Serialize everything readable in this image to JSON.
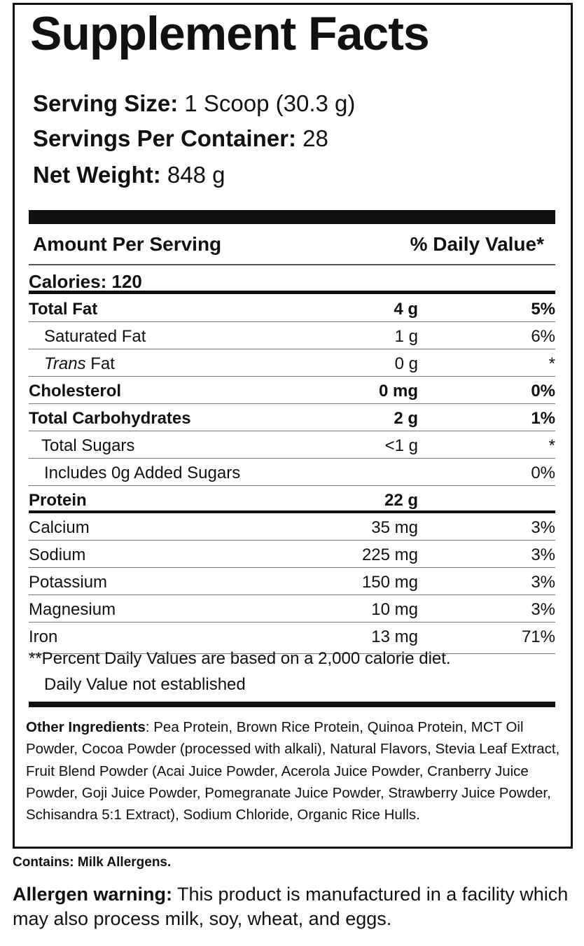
{
  "title": "Supplement Facts",
  "serving": {
    "size_label": "Serving Size:",
    "size_value": " 1 Scoop (30.3 g)",
    "per_container_label": "Servings Per Container:",
    "per_container_value": " 28",
    "net_weight_label": "Net Weight:",
    "net_weight_value": " 848 g"
  },
  "header": {
    "amount": "Amount Per Serving",
    "dv": "% Daily Value*"
  },
  "calories": "Calories: 120",
  "rows": [
    {
      "name": "Total Fat",
      "amount": "4 g",
      "dv": "5%"
    },
    {
      "name": "Saturated Fat",
      "amount": "1 g",
      "dv": "6%"
    },
    {
      "name_italic": "Trans",
      "name": " Fat",
      "amount": "0 g",
      "dv": "*"
    },
    {
      "name": "Cholesterol",
      "amount": "0 mg",
      "dv": "0%"
    },
    {
      "name": "Total Carbohydrates",
      "amount": "2 g",
      "dv": "1%"
    },
    {
      "name": "Total Sugars",
      "amount": "<1 g",
      "dv": "*"
    },
    {
      "name": "Includes 0g Added Sugars",
      "amount": "",
      "dv": "0%"
    },
    {
      "name": "Protein",
      "amount": "22 g",
      "dv": ""
    },
    {
      "name": "Calcium",
      "amount": "35 mg",
      "dv": "3%"
    },
    {
      "name": "Sodium",
      "amount": "225 mg",
      "dv": "3%"
    },
    {
      "name": "Potassium",
      "amount": "150 mg",
      "dv": "3%"
    },
    {
      "name": "Magnesium",
      "amount": "10 mg",
      "dv": "3%"
    },
    {
      "name": "Iron",
      "amount": "13 mg",
      "dv": "71%"
    }
  ],
  "footnotes": [
    "**Percent Daily Values are based on a 2,000 calorie diet.",
    "Daily Value not established"
  ],
  "ingredients": {
    "label": "Other Ingredients",
    "text": ": Pea Protein, Brown Rice Protein, Quinoa Protein, MCT Oil Powder, Cocoa Powder (processed with alkali), Natural Flavors, Stevia Leaf Extract, Fruit Blend Powder (Acai Juice Powder, Acerola Juice Powder, Cranberry Juice Powder, Goji Juice Powder, Pomegranate Juice Powder, Strawberry Juice Powder, Schisandra 5:1 Extract), Sodium Chloride, Organic Rice Hulls."
  },
  "contains": "Contains: Milk Allergens.",
  "allergen": {
    "label": "Allergen warning:",
    "text": " This product is manufactured in a facility which may also process milk, soy, wheat, and eggs."
  }
}
